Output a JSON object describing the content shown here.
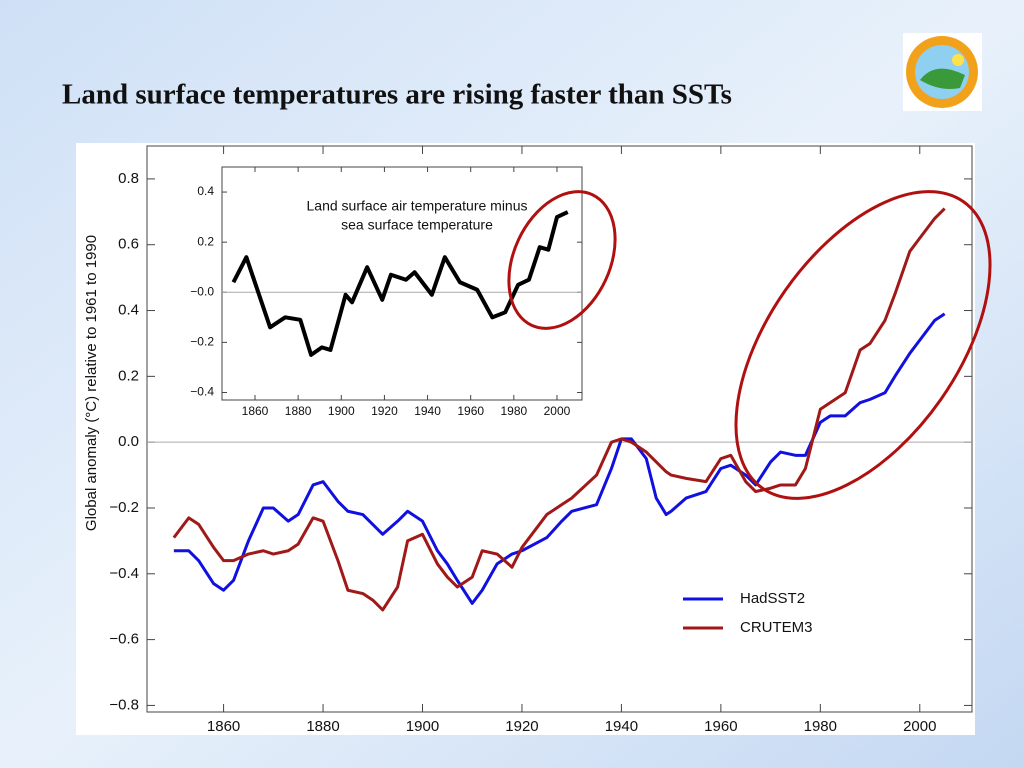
{
  "chart_data": [
    {
      "type": "line",
      "title": "Land surface temperatures are rising faster than SSTs",
      "ylabel": "Global anomaly (°C)  relative to 1961 to 1990",
      "x": [
        1850,
        1853,
        1855,
        1858,
        1860,
        1862,
        1865,
        1868,
        1870,
        1873,
        1875,
        1878,
        1880,
        1883,
        1885,
        1888,
        1890,
        1892,
        1895,
        1897,
        1900,
        1903,
        1905,
        1907,
        1910,
        1912,
        1915,
        1918,
        1920,
        1925,
        1928,
        1930,
        1935,
        1938,
        1940,
        1942,
        1945,
        1947,
        1949,
        1950,
        1953,
        1957,
        1960,
        1962,
        1965,
        1967,
        1970,
        1972,
        1975,
        1977,
        1980,
        1982,
        1985,
        1988,
        1990,
        1993,
        1995,
        1998,
        2000,
        2003,
        2005
      ],
      "series": [
        {
          "name": "HadSST2",
          "color": "#1010e0",
          "values": [
            -0.33,
            -0.33,
            -0.36,
            -0.43,
            -0.45,
            -0.42,
            -0.3,
            -0.2,
            -0.2,
            -0.24,
            -0.22,
            -0.13,
            -0.12,
            -0.18,
            -0.21,
            -0.22,
            -0.25,
            -0.28,
            -0.24,
            -0.21,
            -0.24,
            -0.33,
            -0.37,
            -0.42,
            -0.49,
            -0.45,
            -0.37,
            -0.34,
            -0.33,
            -0.29,
            -0.24,
            -0.21,
            -0.19,
            -0.08,
            0.01,
            0.01,
            -0.05,
            -0.17,
            -0.22,
            -0.21,
            -0.17,
            -0.15,
            -0.08,
            -0.07,
            -0.1,
            -0.13,
            -0.06,
            -0.03,
            -0.04,
            -0.04,
            0.06,
            0.08,
            0.08,
            0.12,
            0.13,
            0.15,
            0.2,
            0.27,
            0.31,
            0.37,
            0.39
          ]
        },
        {
          "name": "CRUTEM3",
          "color": "#a01818",
          "values": [
            -0.29,
            -0.23,
            -0.25,
            -0.32,
            -0.36,
            -0.36,
            -0.34,
            -0.33,
            -0.34,
            -0.33,
            -0.31,
            -0.23,
            -0.24,
            -0.36,
            -0.45,
            -0.46,
            -0.48,
            -0.51,
            -0.44,
            -0.3,
            -0.28,
            -0.37,
            -0.41,
            -0.44,
            -0.41,
            -0.33,
            -0.34,
            -0.38,
            -0.32,
            -0.22,
            -0.19,
            -0.17,
            -0.1,
            0.0,
            0.01,
            0.0,
            -0.03,
            -0.06,
            -0.09,
            -0.1,
            -0.11,
            -0.12,
            -0.05,
            -0.04,
            -0.12,
            -0.15,
            -0.14,
            -0.13,
            -0.13,
            -0.08,
            0.1,
            0.12,
            0.15,
            0.28,
            0.3,
            0.37,
            0.45,
            0.58,
            0.62,
            0.68,
            0.71
          ]
        }
      ],
      "xlim": [
        1844.6,
        2010.5
      ],
      "xticks": [
        1860,
        1880,
        1900,
        1920,
        1940,
        1960,
        1980,
        2000
      ],
      "ylim": [
        -0.82,
        0.9
      ],
      "yticks": [
        {
          "value": -0.8,
          "label": "−0.8"
        },
        {
          "value": -0.6,
          "label": "−0.6"
        },
        {
          "value": -0.4,
          "label": "−0.4"
        },
        {
          "value": -0.2,
          "label": "−0.2"
        },
        {
          "value": 0,
          "label": "0.0"
        },
        0.2,
        0.4,
        0.6,
        0.8
      ],
      "zero_line": true,
      "legend": "lower right"
    },
    {
      "type": "line",
      "title": [
        "Land surface air temperature minus",
        "sea surface temperature"
      ],
      "x": [
        1850,
        1856,
        1867,
        1874,
        1881,
        1886,
        1891,
        1895,
        1902,
        1905,
        1912,
        1919,
        1923,
        1930,
        1934,
        1942,
        1948,
        1955,
        1963,
        1970,
        1976,
        1982,
        1987,
        1992,
        1996,
        2000,
        2005
      ],
      "series": [
        {
          "color": "#000000",
          "values": [
            0.04,
            0.14,
            -0.14,
            -0.1,
            -0.11,
            -0.25,
            -0.22,
            -0.23,
            -0.01,
            -0.04,
            0.1,
            -0.03,
            0.07,
            0.05,
            0.08,
            -0.01,
            0.14,
            0.04,
            0.01,
            -0.1,
            -0.08,
            0.03,
            0.05,
            0.18,
            0.17,
            0.3,
            0.32
          ]
        }
      ],
      "xlim": [
        1844.7,
        2011.6
      ],
      "xticks": [
        1860,
        1880,
        1900,
        1920,
        1940,
        1960,
        1980,
        2000
      ],
      "ylim": [
        -0.43,
        0.5
      ],
      "yticks": [
        {
          "value": -0.4,
          "label": "−0.4"
        },
        {
          "value": -0.2,
          "label": "−0.2"
        },
        {
          "value": 0,
          "label": "−0.0"
        },
        0.2,
        0.4
      ],
      "zero_line": true
    }
  ]
}
